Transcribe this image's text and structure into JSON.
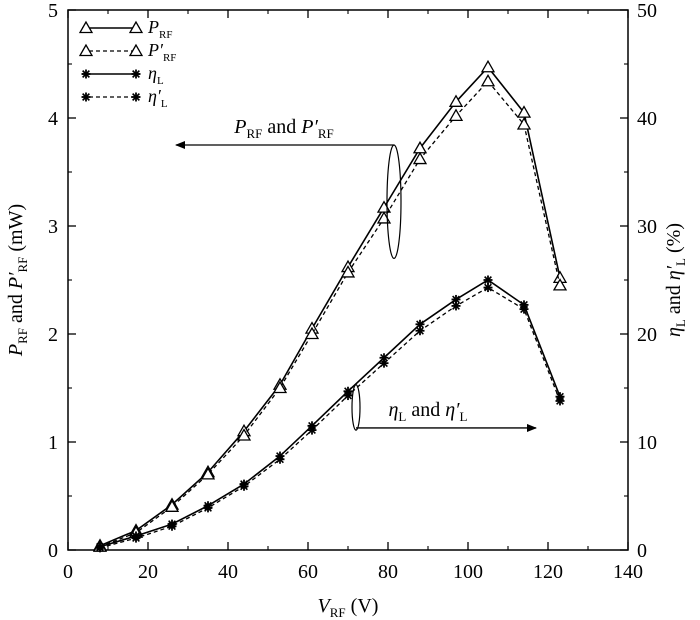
{
  "chart_data": {
    "type": "line",
    "x_axis": {
      "label_main": "V",
      "label_sub": "RF",
      "label_unit": " (V)",
      "lim": [
        0,
        140
      ],
      "ticks": [
        "0",
        "20",
        "40",
        "60",
        "80",
        "100",
        "120",
        "140"
      ]
    },
    "y_left_axis": {
      "label_a": "P",
      "label_a_sub": "RF",
      "label_mid": " and ",
      "label_b": "P′",
      "label_b_sub": "RF",
      "label_unit": " (mW)",
      "lim": [
        0,
        5
      ],
      "ticks": [
        "0",
        "1",
        "2",
        "3",
        "4",
        "5"
      ]
    },
    "y_right_axis": {
      "label_a": "η",
      "label_a_sub": "L",
      "label_mid": " and ",
      "label_b": "η′",
      "label_b_sub": "L",
      "label_unit": " (%)",
      "lim": [
        0,
        50
      ],
      "ticks": [
        "0",
        "10",
        "20",
        "30",
        "40",
        "50"
      ]
    },
    "series": [
      {
        "name": "P_RF",
        "legend_main": "P",
        "legend_sub": "RF",
        "axis": "left",
        "line": "solid",
        "marker": "triangle",
        "x": [
          8,
          17,
          26,
          35,
          44,
          53,
          61,
          70,
          79,
          88,
          97,
          105,
          114,
          123
        ],
        "y": [
          0.04,
          0.18,
          0.42,
          0.72,
          1.1,
          1.53,
          2.05,
          2.62,
          3.17,
          3.72,
          4.15,
          4.47,
          4.05,
          2.52
        ]
      },
      {
        "name": "P'_RF",
        "legend_main": "P′",
        "legend_sub": "RF",
        "axis": "left",
        "line": "dashed",
        "marker": "triangle",
        "x": [
          8,
          17,
          26,
          35,
          44,
          53,
          61,
          70,
          79,
          88,
          97,
          105,
          114,
          123
        ],
        "y": [
          0.03,
          0.16,
          0.4,
          0.7,
          1.06,
          1.5,
          2.0,
          2.57,
          3.07,
          3.62,
          4.02,
          4.34,
          3.94,
          2.45
        ]
      },
      {
        "name": "eta_L",
        "legend_main": "η",
        "legend_sub": "L",
        "axis": "right",
        "line": "solid",
        "marker": "star",
        "x": [
          8,
          17,
          26,
          35,
          44,
          53,
          61,
          70,
          79,
          88,
          97,
          105,
          114,
          123
        ],
        "y": [
          0.3,
          1.3,
          2.4,
          4.1,
          6.1,
          8.7,
          11.5,
          14.7,
          17.8,
          20.9,
          23.2,
          25.0,
          22.7,
          14.2
        ]
      },
      {
        "name": "eta'_L",
        "legend_main": "η′",
        "legend_sub": "L",
        "axis": "right",
        "line": "dashed",
        "marker": "star",
        "x": [
          8,
          17,
          26,
          35,
          44,
          53,
          61,
          70,
          79,
          88,
          97,
          105,
          114,
          123
        ],
        "y": [
          0.2,
          1.1,
          2.2,
          3.9,
          5.9,
          8.4,
          11.1,
          14.3,
          17.3,
          20.3,
          22.6,
          24.3,
          22.3,
          13.8
        ]
      }
    ],
    "annotations": [
      {
        "name": "annotation-p-rf",
        "text_a": "P",
        "text_a_sub": "RF",
        "text_mid": " and ",
        "text_b": "P′",
        "text_b_sub": "RF",
        "arrow_direction": "left",
        "refers_to_axis": "left"
      },
      {
        "name": "annotation-eta-l",
        "text_a": "η",
        "text_a_sub": "L",
        "text_mid": " and ",
        "text_b": "η′",
        "text_b_sub": "L",
        "arrow_direction": "right",
        "refers_to_axis": "right"
      }
    ],
    "legend_position": "top-left",
    "grid": false
  }
}
